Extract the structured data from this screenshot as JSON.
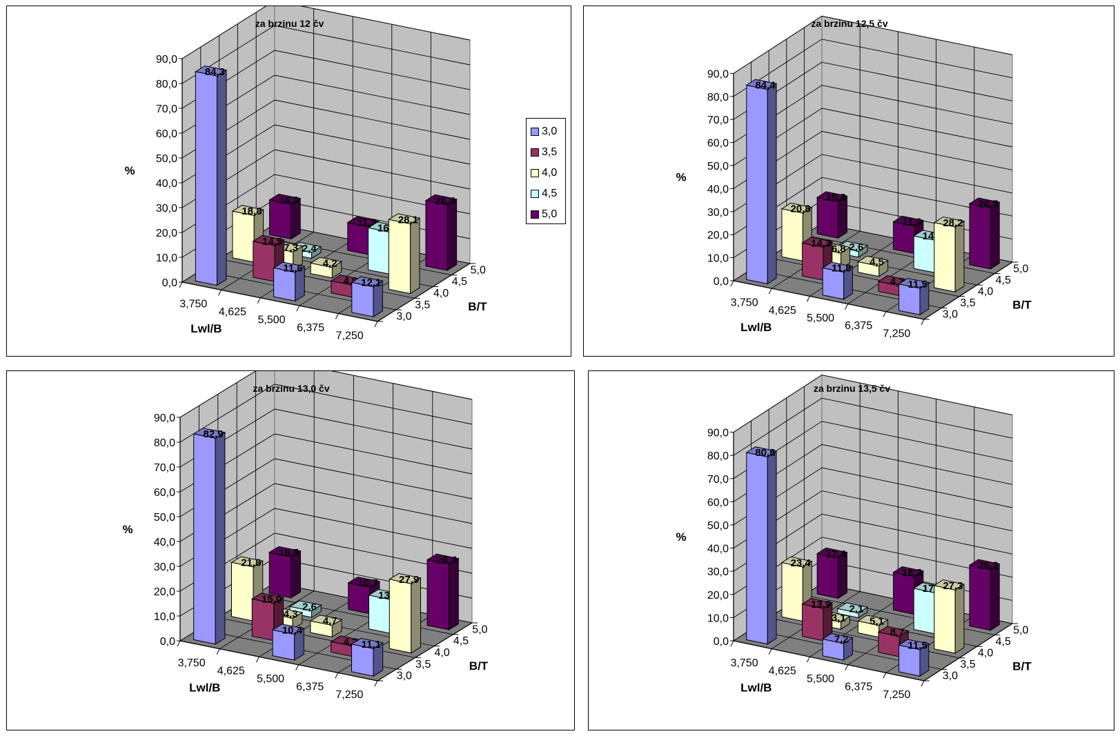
{
  "legend": {
    "entries": [
      "3,0",
      "3,5",
      "4,0",
      "4,5",
      "5,0"
    ],
    "colors": [
      "#9999ff",
      "#993366",
      "#ffffcc",
      "#ccffff",
      "#660066"
    ]
  },
  "chart_data": [
    {
      "type": "bar3d",
      "title": "za brzinu  12 čv",
      "ylabel": "%",
      "xlabel": "Lwl/B",
      "zlabel": "B/T",
      "yticks": [
        "0,0",
        "10,0",
        "20,0",
        "30,0",
        "40,0",
        "50,0",
        "60,0",
        "70,0",
        "80,0",
        "90,0"
      ],
      "categories": [
        "3,750",
        "4,625",
        "5,500",
        "6,375",
        "7,250"
      ],
      "series": [
        {
          "name": "3,0",
          "values": [
            84.3,
            null,
            11.6,
            null,
            12.1
          ],
          "labels": [
            "84,3",
            "",
            "11,6",
            "",
            "12,1"
          ]
        },
        {
          "name": "3,5",
          "values": [
            null,
            14.5,
            null,
            4.9,
            null
          ],
          "labels": [
            "",
            "14,5",
            "",
            "4,9",
            ""
          ]
        },
        {
          "name": "4,0",
          "values": [
            18.8,
            7.3,
            4.2,
            null,
            28.1
          ],
          "labels": [
            "18,8",
            "7,3",
            "4,2",
            "",
            "28,1"
          ]
        },
        {
          "name": "4,5",
          "values": [
            null,
            2.4,
            null,
            16.9,
            null
          ],
          "labels": [
            "",
            "2,4",
            "",
            "16,9",
            ""
          ]
        },
        {
          "name": "5,0",
          "values": [
            14.0,
            null,
            11.2,
            null,
            26.4
          ],
          "labels": [
            "14,0",
            "",
            "11,2",
            "",
            "26,4"
          ]
        }
      ]
    },
    {
      "type": "bar3d",
      "title": "za brzinu  12,5 čv",
      "ylabel": "%",
      "xlabel": "Lwl/B",
      "zlabel": "B/T",
      "yticks": [
        "0,0",
        "10,0",
        "20,0",
        "30,0",
        "40,0",
        "50,0",
        "60,0",
        "70,0",
        "80,0",
        "90,0"
      ],
      "categories": [
        "3,750",
        "4,625",
        "5,500",
        "6,375",
        "7,250"
      ],
      "series": [
        {
          "name": "3,0",
          "values": [
            84.4,
            null,
            11.8,
            null,
            11.5
          ],
          "labels": [
            "84,4",
            "",
            "11,8",
            "",
            "11,5"
          ]
        },
        {
          "name": "3,5",
          "values": [
            null,
            14.3,
            null,
            4.3,
            null
          ],
          "labels": [
            "",
            "14,3",
            "",
            "4,3",
            ""
          ]
        },
        {
          "name": "4,0",
          "values": [
            20.8,
            6.8,
            4.5,
            null,
            28.2
          ],
          "labels": [
            "20,8",
            "6,8",
            "4,5",
            "",
            "28,2"
          ]
        },
        {
          "name": "4,5",
          "values": [
            null,
            2.6,
            null,
            14.1,
            null
          ],
          "labels": [
            "",
            "2,6",
            "",
            "14,1",
            ""
          ]
        },
        {
          "name": "5,0",
          "values": [
            15.8,
            null,
            11.9,
            null,
            26.5
          ],
          "labels": [
            "15,8",
            "",
            "11,9",
            "",
            "26,5"
          ]
        }
      ]
    },
    {
      "type": "bar3d",
      "title": "za brzinu  13,0 čv",
      "ylabel": "%",
      "xlabel": "Lwl/B",
      "zlabel": "B/T",
      "yticks": [
        "0,0",
        "10,0",
        "20,0",
        "30,0",
        "40,0",
        "50,0",
        "60,0",
        "70,0",
        "80,0",
        "90,0"
      ],
      "categories": [
        "3,750",
        "4,625",
        "5,500",
        "6,375",
        "7,250"
      ],
      "series": [
        {
          "name": "3,0",
          "values": [
            82.9,
            null,
            10.4,
            null,
            11.1
          ],
          "labels": [
            "82,9",
            "",
            "10,4",
            "",
            "11,1"
          ]
        },
        {
          "name": "3,5",
          "values": [
            null,
            15.0,
            null,
            4.2,
            null
          ],
          "labels": [
            "",
            "15,0",
            "",
            "4,2",
            ""
          ]
        },
        {
          "name": "4,0",
          "values": [
            21.8,
            4.3,
            4.7,
            null,
            27.9
          ],
          "labels": [
            "21,8",
            "4,3",
            "4,7",
            "",
            "27,9"
          ]
        },
        {
          "name": "4,5",
          "values": [
            null,
            2.6,
            null,
            13.6,
            null
          ],
          "labels": [
            "",
            "2,6",
            "",
            "13,6",
            ""
          ]
        },
        {
          "name": "5,0",
          "values": [
            16.5,
            null,
            10.7,
            null,
            26.4
          ],
          "labels": [
            "16,5",
            "",
            "10,7",
            "",
            "26,4"
          ]
        }
      ]
    },
    {
      "type": "bar3d",
      "title": "za brzinu  13,5 čv",
      "ylabel": "%",
      "xlabel": "Lwl/B",
      "zlabel": "B/T",
      "yticks": [
        "0,0",
        "10,0",
        "20,0",
        "30,0",
        "40,0",
        "50,0",
        "60,0",
        "70,0",
        "80,0",
        "90,0"
      ],
      "categories": [
        "3,750",
        "4,625",
        "5,500",
        "6,375",
        "7,250"
      ],
      "series": [
        {
          "name": "3,0",
          "values": [
            80.8,
            null,
            7.2,
            null,
            11.5
          ],
          "labels": [
            "80,8",
            "",
            "7,2",
            "",
            "11,5"
          ]
        },
        {
          "name": "3,5",
          "values": [
            null,
            13.9,
            null,
            8.7,
            null
          ],
          "labels": [
            "",
            "13,9",
            "",
            "8,7",
            ""
          ]
        },
        {
          "name": "4,0",
          "values": [
            23.4,
            3.1,
            5.1,
            null,
            27.3
          ],
          "labels": [
            "23,4",
            "3,1",
            "5,1",
            "",
            "27,3"
          ]
        },
        {
          "name": "4,5",
          "values": [
            null,
            2.1,
            null,
            17.7,
            null
          ],
          "labels": [
            "",
            "2,1",
            "",
            "17,7",
            ""
          ]
        },
        {
          "name": "5,0",
          "values": [
            17.4,
            null,
            16.2,
            null,
            26.2
          ],
          "labels": [
            "17,4",
            "",
            "16,2",
            "",
            "26,2"
          ]
        }
      ]
    }
  ]
}
